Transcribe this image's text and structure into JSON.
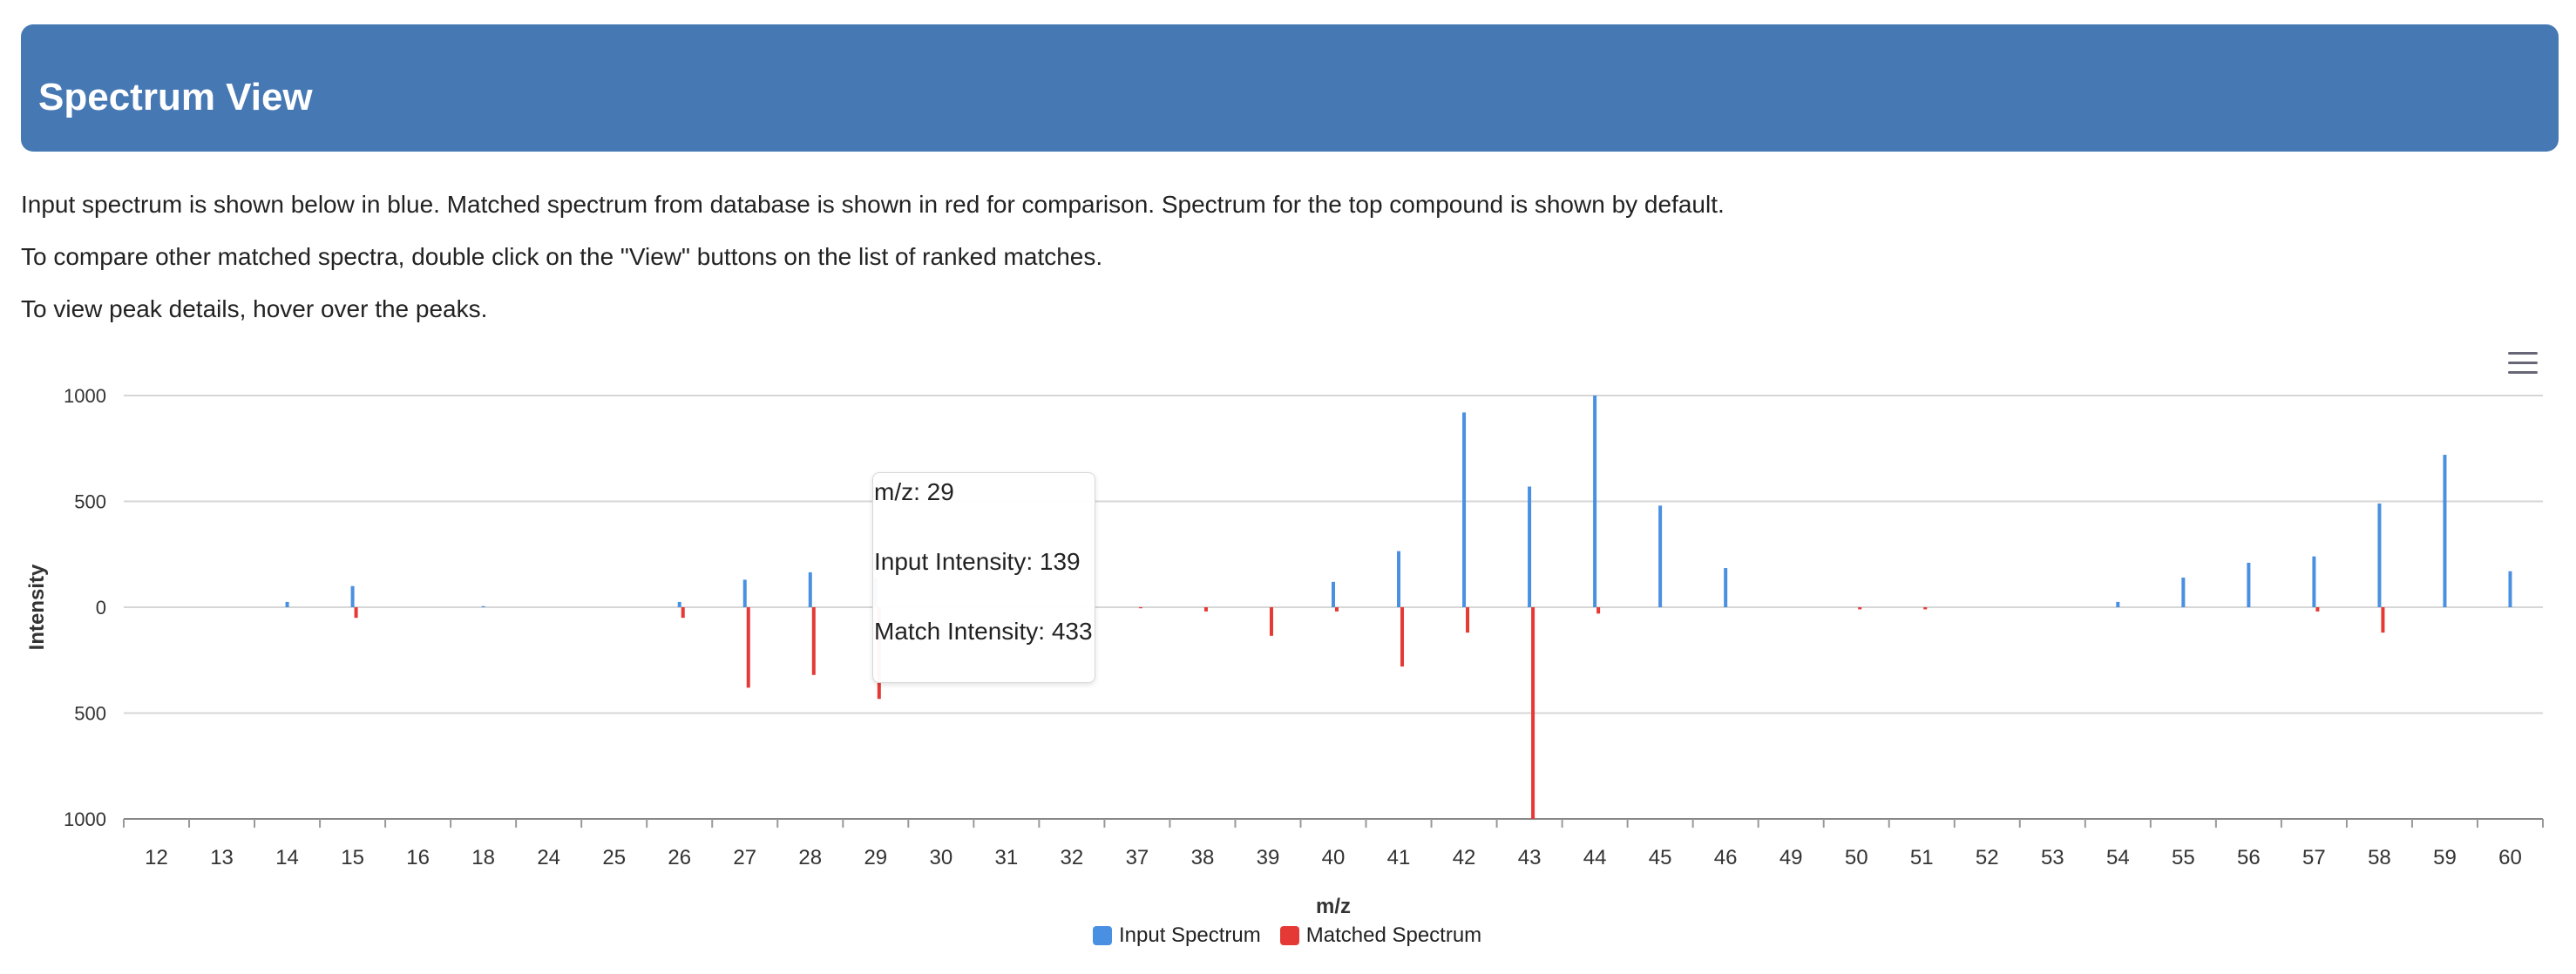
{
  "header": {
    "title": "Spectrum View"
  },
  "intro": {
    "line1": "Input spectrum is shown below in blue. Matched spectrum from database is shown in red for comparison. Spectrum for the top compound is shown by default.",
    "line2": "To compare other matched spectra, double click on the \"View\" buttons on the list of ranked matches.",
    "line3": "To view peak details, hover over the peaks."
  },
  "colors": {
    "header": "#4678b4",
    "input": "#4a90e2",
    "match": "#e53935"
  },
  "tooltip": {
    "mz_text": "m/z: 29",
    "input_text": "Input Intensity: 139",
    "match_text": "Match Intensity: 433"
  },
  "chart_data": {
    "type": "bar",
    "xlabel": "m/z",
    "ylabel": "Intensity",
    "ylim": [
      -1000,
      1000
    ],
    "yticks": [
      1000,
      500,
      0,
      -500,
      -1000
    ],
    "ytick_labels": [
      "1000",
      "500",
      "0",
      "500",
      "1000"
    ],
    "grid": true,
    "legend_position": "bottom-center",
    "categories": [
      "12",
      "13",
      "14",
      "15",
      "16",
      "18",
      "24",
      "25",
      "26",
      "27",
      "28",
      "29",
      "30",
      "31",
      "32",
      "37",
      "38",
      "39",
      "40",
      "41",
      "42",
      "43",
      "44",
      "45",
      "46",
      "49",
      "50",
      "51",
      "52",
      "53",
      "54",
      "55",
      "56",
      "57",
      "58",
      "59",
      "60"
    ],
    "series": [
      {
        "name": "Input Spectrum",
        "color": "#4a90e2",
        "values": [
          0,
          0,
          25,
          100,
          0,
          5,
          0,
          0,
          25,
          130,
          165,
          139,
          0,
          0,
          0,
          0,
          0,
          0,
          120,
          265,
          920,
          570,
          1000,
          480,
          185,
          0,
          0,
          0,
          0,
          0,
          25,
          140,
          210,
          240,
          490,
          720,
          170
        ]
      },
      {
        "name": "Matched Spectrum",
        "color": "#e53935",
        "values": [
          0,
          0,
          0,
          50,
          0,
          0,
          0,
          0,
          50,
          380,
          320,
          433,
          0,
          0,
          0,
          5,
          20,
          135,
          20,
          280,
          120,
          1000,
          30,
          0,
          0,
          0,
          10,
          10,
          0,
          0,
          0,
          0,
          0,
          20,
          120,
          0,
          0
        ]
      }
    ]
  }
}
